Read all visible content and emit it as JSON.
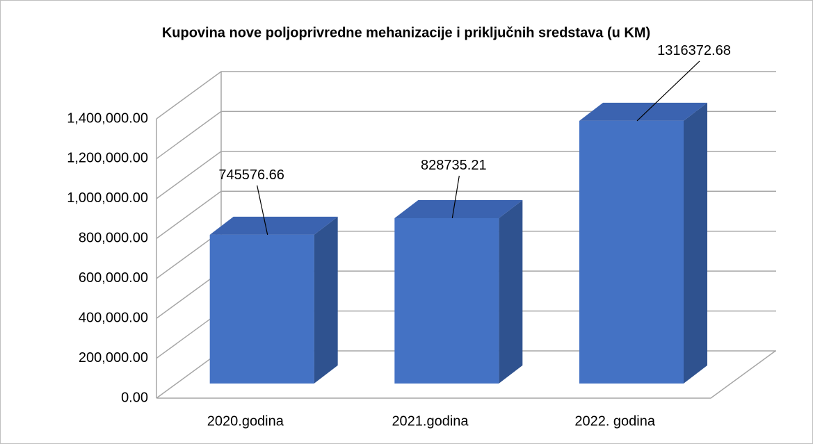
{
  "chart_data": {
    "type": "bar3d",
    "title": "Kupovina nove poljoprivredne mehanizacije i priključnih sredstava (u KM)",
    "categories": [
      "2020.godina",
      "2021.godina",
      "2022. godina"
    ],
    "values": [
      745576.66,
      828735.21,
      1316372.68
    ],
    "color": "#4472c4",
    "ylim": [
      0,
      1400000
    ],
    "yticks": [
      {
        "value": 0,
        "label": "0.00"
      },
      {
        "value": 200000,
        "label": "200,000.00"
      },
      {
        "value": 400000,
        "label": "400,000.00"
      },
      {
        "value": 600000,
        "label": "600,000.00"
      },
      {
        "value": 800000,
        "label": "800,000.00"
      },
      {
        "value": 1000000,
        "label": "1,000,000.00"
      },
      {
        "value": 1200000,
        "label": "1,200,000.00"
      },
      {
        "value": 1400000,
        "label": "1,400,000.00"
      }
    ],
    "grid": true
  }
}
